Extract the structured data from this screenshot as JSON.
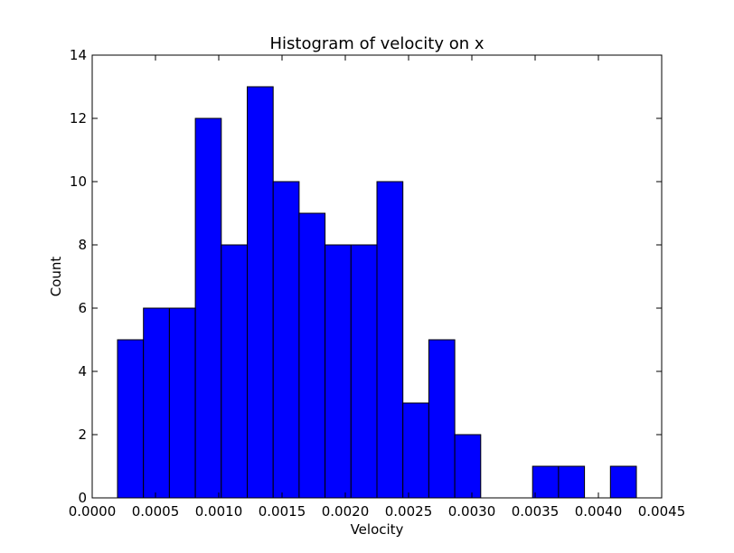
{
  "chart_data": {
    "type": "bar",
    "title": "Histogram of velocity on x",
    "xlabel": "Velocity",
    "ylabel": "Count",
    "xlim": [
      0.0,
      0.0045
    ],
    "ylim": [
      0,
      14
    ],
    "bar_color": "#0000ff",
    "edge_color": "#000000",
    "grid": false,
    "bins": [
      {
        "x0": 0.0002,
        "x1": 0.000405,
        "count": 5
      },
      {
        "x0": 0.000405,
        "x1": 0.00061,
        "count": 6
      },
      {
        "x0": 0.00061,
        "x1": 0.000815,
        "count": 6
      },
      {
        "x0": 0.000815,
        "x1": 0.00102,
        "count": 12
      },
      {
        "x0": 0.00102,
        "x1": 0.001225,
        "count": 8
      },
      {
        "x0": 0.001225,
        "x1": 0.00143,
        "count": 13
      },
      {
        "x0": 0.00143,
        "x1": 0.001635,
        "count": 10
      },
      {
        "x0": 0.001635,
        "x1": 0.00184,
        "count": 9
      },
      {
        "x0": 0.00184,
        "x1": 0.002045,
        "count": 8
      },
      {
        "x0": 0.002045,
        "x1": 0.00225,
        "count": 8
      },
      {
        "x0": 0.00225,
        "x1": 0.002455,
        "count": 10
      },
      {
        "x0": 0.002455,
        "x1": 0.00266,
        "count": 3
      },
      {
        "x0": 0.00266,
        "x1": 0.002865,
        "count": 5
      },
      {
        "x0": 0.002865,
        "x1": 0.00307,
        "count": 2
      },
      {
        "x0": 0.00307,
        "x1": 0.003275,
        "count": 0
      },
      {
        "x0": 0.003275,
        "x1": 0.00348,
        "count": 0
      },
      {
        "x0": 0.00348,
        "x1": 0.003685,
        "count": 1
      },
      {
        "x0": 0.003685,
        "x1": 0.00389,
        "count": 1
      },
      {
        "x0": 0.00389,
        "x1": 0.004095,
        "count": 0
      },
      {
        "x0": 0.004095,
        "x1": 0.0043,
        "count": 1
      }
    ],
    "x_ticks": [
      "0.0000",
      "0.0005",
      "0.0010",
      "0.0015",
      "0.0020",
      "0.0025",
      "0.0030",
      "0.0035",
      "0.0040",
      "0.0045"
    ],
    "y_ticks": [
      "0",
      "2",
      "4",
      "6",
      "8",
      "10",
      "12",
      "14"
    ]
  }
}
